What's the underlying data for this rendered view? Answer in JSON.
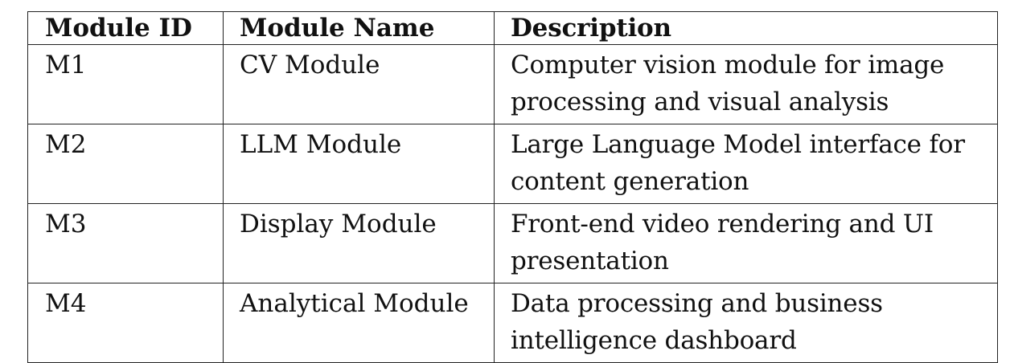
{
  "table": {
    "headers": {
      "id": "Module ID",
      "name": "Module Name",
      "description": "Description"
    },
    "rows": [
      {
        "id": "M1",
        "name": "CV Module",
        "description": "Computer vision module for image processing and visual analysis"
      },
      {
        "id": "M2",
        "name": "LLM Module",
        "description": "Large Language Model interface for content generation"
      },
      {
        "id": "M3",
        "name": "Display Module",
        "description": "Front-end video rendering and UI presentation"
      },
      {
        "id": "M4",
        "name": "Analytical Module",
        "description": "Data processing and business intelligence dashboard"
      }
    ]
  }
}
